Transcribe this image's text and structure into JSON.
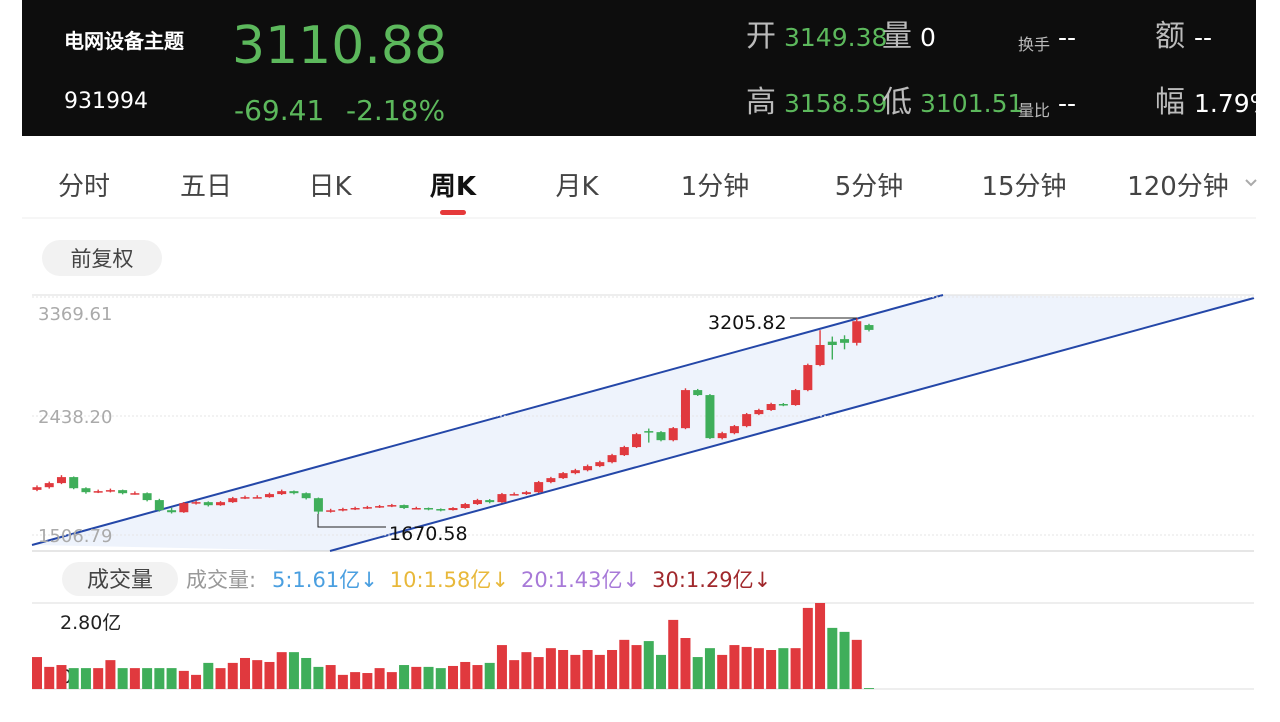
{
  "header": {
    "name": "电网设备主题",
    "code": "931994",
    "price": "3110.88",
    "change": "-69.41",
    "change_pct": "-2.18%",
    "stats": [
      {
        "label": "开",
        "value": "3149.38"
      },
      {
        "label": "量",
        "value": "0"
      },
      {
        "label": "换手",
        "value": "--"
      },
      {
        "label": "额",
        "value": "--"
      },
      {
        "label": "高",
        "value": "3158.59"
      },
      {
        "label": "低",
        "value": "3101.51"
      },
      {
        "label": "量比",
        "value": "--"
      },
      {
        "label": "幅",
        "value": "1.79%"
      }
    ]
  },
  "tabs": [
    "分时",
    "五日",
    "日K",
    "周K",
    "月K",
    "1分钟",
    "5分钟",
    "15分钟",
    "120分钟"
  ],
  "adjust": "前复权",
  "chart": {
    "type": "candlestick",
    "ylim": [
      1506.79,
      3369.61
    ],
    "yticks": [
      1506.79,
      {
        "value": 2438.2,
        "label": "2438.20"
      },
      3369.61
    ],
    "up_color": "#e0393e",
    "down_color": "#3fae5a",
    "annotations": [
      "3205.82",
      "1670.58"
    ],
    "candles": [
      [
        1860,
        1895,
        1850,
        1881
      ],
      [
        1881,
        1925,
        1870,
        1913
      ],
      [
        1913,
        1975,
        1905,
        1960
      ],
      [
        1960,
        1965,
        1865,
        1873
      ],
      [
        1873,
        1880,
        1830,
        1842
      ],
      [
        1842,
        1862,
        1835,
        1850
      ],
      [
        1850,
        1870,
        1840,
        1858
      ],
      [
        1858,
        1862,
        1825,
        1834
      ],
      [
        1834,
        1848,
        1822,
        1834
      ],
      [
        1834,
        1840,
        1770,
        1780
      ],
      [
        1780,
        1790,
        1690,
        1701
      ],
      [
        1701,
        1720,
        1675,
        1685
      ],
      [
        1685,
        1765,
        1680,
        1756
      ],
      [
        1756,
        1775,
        1745,
        1764
      ],
      [
        1764,
        1770,
        1730,
        1740
      ],
      [
        1740,
        1772,
        1735,
        1764
      ],
      [
        1764,
        1805,
        1758,
        1795
      ],
      [
        1795,
        1815,
        1788,
        1803
      ],
      [
        1803,
        1818,
        1795,
        1803
      ],
      [
        1803,
        1838,
        1798,
        1827
      ],
      [
        1827,
        1862,
        1820,
        1850
      ],
      [
        1850,
        1855,
        1825,
        1834
      ],
      [
        1834,
        1840,
        1785,
        1795
      ],
      [
        1795,
        1800,
        1670.58,
        1690
      ],
      [
        1690,
        1712,
        1682,
        1700
      ],
      [
        1700,
        1720,
        1692,
        1710
      ],
      [
        1710,
        1728,
        1702,
        1718
      ],
      [
        1718,
        1735,
        1710,
        1725
      ],
      [
        1725,
        1742,
        1718,
        1733
      ],
      [
        1733,
        1750,
        1725,
        1741
      ],
      [
        1741,
        1745,
        1710,
        1718
      ],
      [
        1718,
        1728,
        1708,
        1718
      ],
      [
        1718,
        1722,
        1700,
        1710
      ],
      [
        1710,
        1715,
        1692,
        1702
      ],
      [
        1702,
        1725,
        1698,
        1718
      ],
      [
        1718,
        1758,
        1712,
        1749
      ],
      [
        1749,
        1790,
        1742,
        1780
      ],
      [
        1780,
        1788,
        1755,
        1764
      ],
      [
        1764,
        1836,
        1758,
        1827
      ],
      [
        1827,
        1840,
        1815,
        1827
      ],
      [
        1827,
        1852,
        1820,
        1842
      ],
      [
        1842,
        1930,
        1835,
        1921
      ],
      [
        1921,
        1962,
        1912,
        1952
      ],
      [
        1952,
        2000,
        1945,
        1991
      ],
      [
        1991,
        2025,
        1982,
        2014
      ],
      [
        2014,
        2058,
        2005,
        2046
      ],
      [
        2046,
        2088,
        2038,
        2077
      ],
      [
        2077,
        2142,
        2068,
        2132
      ],
      [
        2132,
        2205,
        2125,
        2195
      ],
      [
        2195,
        2306,
        2188,
        2296
      ],
      [
        2320,
        2340,
        2230,
        2312
      ],
      [
        2312,
        2320,
        2240,
        2249
      ],
      [
        2249,
        2352,
        2240,
        2343
      ],
      [
        2343,
        2655,
        2335,
        2641
      ],
      [
        2641,
        2650,
        2595,
        2602
      ],
      [
        2602,
        2610,
        2258,
        2265
      ],
      [
        2265,
        2315,
        2255,
        2304
      ],
      [
        2304,
        2368,
        2295,
        2359
      ],
      [
        2359,
        2462,
        2350,
        2453
      ],
      [
        2453,
        2495,
        2445,
        2485
      ],
      [
        2485,
        2542,
        2478,
        2532
      ],
      [
        2532,
        2540,
        2515,
        2524
      ],
      [
        2524,
        2650,
        2518,
        2641
      ],
      [
        2641,
        2848,
        2632,
        2837
      ],
      [
        2837,
        3110,
        2828,
        2994
      ],
      [
        3020,
        3060,
        2880,
        2994
      ],
      [
        3040,
        3070,
        2960,
        3011
      ],
      [
        3011,
        3205.82,
        2990,
        3180
      ],
      [
        3150,
        3160,
        3100,
        3112
      ]
    ]
  },
  "volume": {
    "title": "成交量",
    "label": "成交量:",
    "ma": [
      {
        "text": "5:1.61亿↓",
        "color": "#4a9fe0"
      },
      {
        "text": "10:1.58亿↓",
        "color": "#e8b83a"
      },
      {
        "text": "20:1.43亿↓",
        "color": "#a779d8"
      },
      {
        "text": "30:1.29亿↓",
        "color": "#a0282c"
      }
    ],
    "ylim": [
      0,
      2.8
    ],
    "yticks": [
      0,
      {
        "value": 2.8,
        "label": "2.80亿"
      }
    ],
    "values": [
      1.04,
      0.72,
      0.78,
      0.68,
      0.68,
      0.68,
      0.94,
      0.68,
      0.68,
      0.68,
      0.68,
      0.68,
      0.59,
      0.46,
      0.85,
      0.68,
      0.85,
      1.01,
      0.94,
      0.88,
      1.2,
      1.2,
      1.01,
      0.72,
      0.78,
      0.46,
      0.55,
      0.52,
      0.68,
      0.55,
      0.78,
      0.72,
      0.72,
      0.68,
      0.75,
      0.88,
      0.78,
      0.85,
      1.43,
      0.94,
      1.2,
      1.04,
      1.33,
      1.27,
      1.11,
      1.27,
      1.11,
      1.27,
      1.6,
      1.43,
      1.56,
      1.11,
      2.25,
      1.66,
      1.04,
      1.33,
      1.11,
      1.43,
      1.37,
      1.33,
      1.27,
      1.33,
      1.33,
      2.64,
      2.8,
      1.99,
      1.86,
      1.6,
      0.03
    ]
  }
}
